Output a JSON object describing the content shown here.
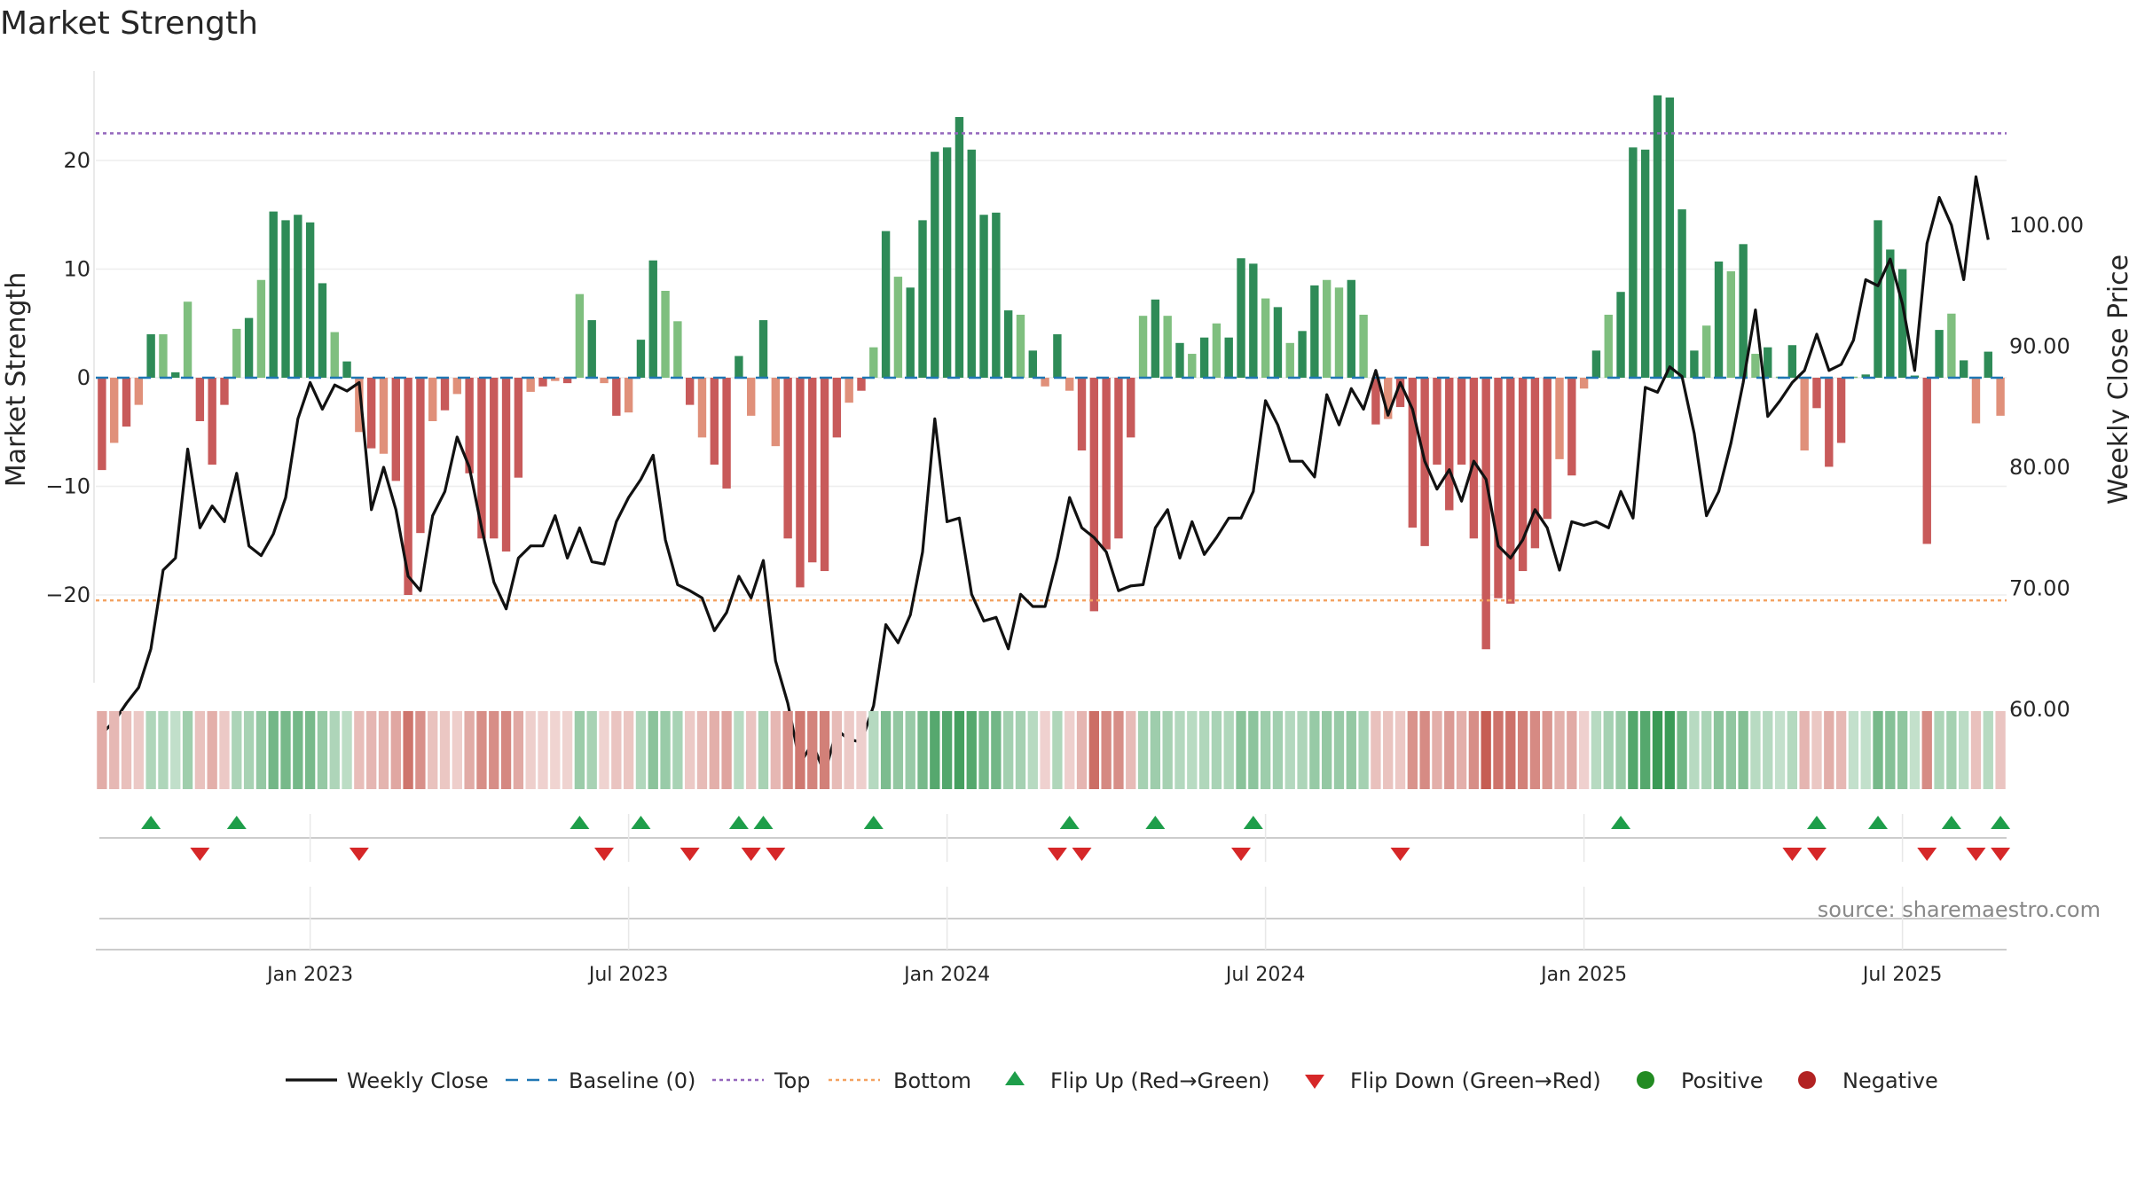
{
  "chart_data": {
    "type": "bar",
    "title": "Market Strength",
    "ylabel": "Market Strength",
    "y2label": "Weekly Close Price",
    "ylim": [
      -28,
      28
    ],
    "y2lim": [
      50,
      105
    ],
    "yticks": [
      "20",
      "10",
      "0",
      "−10",
      "−20"
    ],
    "yticks_values": [
      20,
      10,
      0,
      -10,
      -20
    ],
    "y2ticks": [
      "100.00",
      "90.00",
      "80.00",
      "70.00",
      "60.00"
    ],
    "y2ticks_values": [
      100,
      90,
      80,
      70,
      60
    ],
    "top_line": 22.5,
    "bottom_line": -20.5,
    "xticks": [
      "Jan 2023",
      "Jul 2023",
      "Jan 2024",
      "Jul 2024",
      "Jan 2025",
      "Jul 2025"
    ],
    "xticks_week_index": [
      17,
      43,
      69,
      95,
      121,
      147
    ],
    "strength": [
      -8.5,
      -6,
      -4.5,
      -2.5,
      4,
      4,
      0.5,
      7,
      -4,
      -8,
      -2.5,
      4.5,
      5.5,
      9,
      15.3,
      14.5,
      15,
      14.3,
      8.7,
      4.2,
      1.5,
      -5,
      -6.5,
      -7,
      -9.5,
      -20,
      -14.3,
      -4,
      -3,
      -1.5,
      -8.8,
      -14.8,
      -14.8,
      -16,
      -9.2,
      -1.3,
      -0.8,
      -0.3,
      -0.5,
      7.7,
      5.3,
      -0.5,
      -3.5,
      -3.2,
      3.5,
      10.8,
      8,
      5.2,
      -2.5,
      -5.5,
      -8,
      -10.2,
      2,
      -3.5,
      5.3,
      -6.3,
      -14.8,
      -19.3,
      -17,
      -17.8,
      -5.5,
      -2.3,
      -1.2,
      2.8,
      13.5,
      9.3,
      8.3,
      14.5,
      20.8,
      21.2,
      24,
      21,
      15,
      15.2,
      6.2,
      5.8,
      2.5,
      -0.8,
      4,
      -1.2,
      -6.7,
      -21.5,
      -15.8,
      -14.8,
      -5.5,
      5.7,
      7.2,
      5.7,
      3.2,
      2.2,
      3.7,
      5,
      3.7,
      11,
      10.5,
      7.3,
      6.5,
      3.2,
      4.3,
      8.5,
      9,
      8.3,
      9,
      5.8,
      -4.3,
      -3.8,
      -2.7,
      -13.8,
      -15.5,
      -8,
      -12.2,
      -8,
      -14.8,
      -25,
      -20.3,
      -20.8,
      -17.8,
      -15.7,
      -13,
      -7.5,
      -9,
      -1,
      2.5,
      5.8,
      7.9,
      21.2,
      21,
      26,
      25.8,
      15.5,
      2.5,
      4.8,
      10.7,
      9.8,
      12.3,
      2.2,
      2.8,
      0.1,
      3,
      -6.7,
      -2.8,
      -8.2,
      -6,
      0.1,
      0.3,
      14.5,
      11.8,
      10,
      0.2,
      -15.3,
      4.4,
      5.9,
      1.6,
      -4.2,
      2.4,
      -3.5
    ],
    "flip_up_weeks": [
      4,
      11,
      39,
      44,
      52,
      54,
      63,
      79,
      86,
      94,
      124,
      140,
      145,
      151,
      155
    ],
    "flip_down_weeks": [
      8,
      21,
      41,
      48,
      53,
      55,
      78,
      80,
      93,
      106,
      138,
      140,
      149,
      153,
      155
    ],
    "close": [
      58,
      59,
      60.5,
      61.8,
      65,
      71.5,
      72.5,
      81.5,
      75,
      76.8,
      75.5,
      79.5,
      73.5,
      72.7,
      74.5,
      77.5,
      84,
      87,
      84.8,
      86.8,
      86.3,
      87,
      76.5,
      80,
      76.5,
      71,
      69.8,
      76,
      78,
      82.5,
      80,
      75,
      70.5,
      68.3,
      72.5,
      73.5,
      73.5,
      76,
      72.5,
      75,
      72.2,
      72,
      75.5,
      77.5,
      79,
      81,
      74,
      70.3,
      69.8,
      69.2,
      66.5,
      68,
      71,
      69.2,
      72.3,
      64,
      60.5,
      55.5,
      57.2,
      54.7,
      58.3,
      57.5,
      57.3,
      60.3,
      67,
      65.5,
      67.8,
      73,
      84,
      75.5,
      75.8,
      69.5,
      67.3,
      67.6,
      65,
      69.5,
      68.5,
      68.5,
      72.5,
      77.5,
      75,
      74.2,
      73,
      69.8,
      70.2,
      70.3,
      75,
      76.5,
      72.5,
      75.5,
      72.8,
      74.2,
      75.8,
      75.8,
      78,
      85.5,
      83.5,
      80.5,
      80.5,
      79.2,
      86,
      83.5,
      86.5,
      84.8,
      88,
      84.3,
      87,
      84.8,
      80.5,
      78.2,
      79.8,
      77.2,
      80.5,
      79,
      73.5,
      72.5,
      74,
      76.5,
      75,
      71.5,
      75.5,
      75.2,
      75.5,
      75,
      78,
      75.8,
      86.6,
      86.2,
      88.3,
      87.5,
      82.8,
      76,
      78,
      82,
      87,
      93,
      84.2,
      85.5,
      87,
      88,
      91,
      88,
      88.5,
      90.5,
      95.5,
      95,
      97.2,
      93.5,
      88,
      98.5,
      102.3,
      100,
      95.5,
      104,
      98.8
    ]
  },
  "legend": {
    "weekly_close": "Weekly Close",
    "baseline": "Baseline (0)",
    "top": "Top",
    "bottom": "Bottom",
    "flip_up": "Flip Up (Red→Green)",
    "flip_down": "Flip Down (Green→Red)",
    "positive": "Positive",
    "negative": "Negative"
  },
  "source": "source: sharemaestro.com",
  "colors": {
    "green_dark": "#2e8b57",
    "green_light": "#7fbf7f",
    "red_dark": "#c85a5a",
    "red_light": "#e0907a",
    "line": "#111111",
    "baseline": "#1f77b4",
    "top": "#9467bd",
    "bottom": "#f4a261",
    "flip_up": "#1e9e4a",
    "flip_down": "#d62728",
    "positive": "#228b22",
    "negative": "#b22222"
  }
}
